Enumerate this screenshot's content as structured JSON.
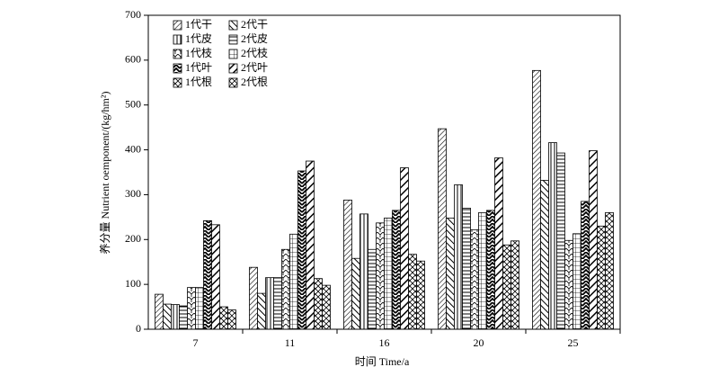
{
  "chart_data": {
    "type": "bar",
    "x_label": "时间 Time/a",
    "y_label": "养分量 Nutrient oemponent/(kg/hm²)",
    "categories": [
      "7",
      "11",
      "16",
      "20",
      "25"
    ],
    "ylim": [
      0,
      700
    ],
    "yticks": [
      0,
      100,
      200,
      300,
      400,
      500,
      600,
      700
    ],
    "legend": "upper-left",
    "series": [
      {
        "name": "1代干",
        "color": "#000000",
        "values": [
          78,
          138,
          288,
          447,
          577
        ]
      },
      {
        "name": "2代干",
        "color": "#000000",
        "values": [
          56,
          80,
          158,
          248,
          332
        ]
      },
      {
        "name": "1代皮",
        "color": "#000000",
        "values": [
          55,
          115,
          257,
          322,
          416
        ]
      },
      {
        "name": "2代皮",
        "color": "#000000",
        "values": [
          52,
          115,
          178,
          270,
          393
        ]
      },
      {
        "name": "1代枝",
        "color": "#000000",
        "values": [
          93,
          178,
          237,
          222,
          198
        ]
      },
      {
        "name": "2代枝",
        "color": "#000000",
        "values": [
          93,
          212,
          248,
          260,
          213
        ]
      },
      {
        "name": "1代叶",
        "color": "#000000",
        "values": [
          242,
          353,
          265,
          265,
          285
        ]
      },
      {
        "name": "2代叶",
        "color": "#000000",
        "values": [
          233,
          375,
          360,
          382,
          398
        ]
      },
      {
        "name": "1代根",
        "color": "#000000",
        "values": [
          50,
          113,
          167,
          188,
          230
        ]
      },
      {
        "name": "2代根",
        "color": "#000000",
        "values": [
          43,
          98,
          152,
          197,
          260
        ]
      }
    ]
  }
}
